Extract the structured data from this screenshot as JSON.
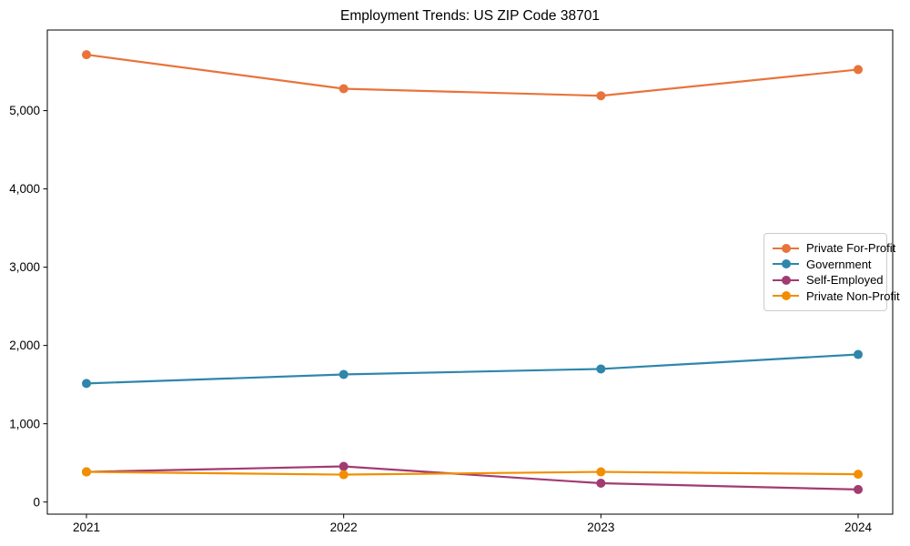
{
  "chart_data": {
    "type": "line",
    "title": "Employment Trends: US ZIP Code 38701",
    "xlabel": "",
    "ylabel": "",
    "categories": [
      "2021",
      "2022",
      "2023",
      "2024"
    ],
    "series": [
      {
        "name": "Private For-Profit",
        "color": "#E8743B",
        "values": [
          5715,
          5280,
          5190,
          5525
        ]
      },
      {
        "name": "Government",
        "color": "#2E86AB",
        "values": [
          1515,
          1630,
          1700,
          1885
        ]
      },
      {
        "name": "Self-Employed",
        "color": "#A23B72",
        "values": [
          385,
          455,
          240,
          160
        ]
      },
      {
        "name": "Private Non-Profit",
        "color": "#F18F01",
        "values": [
          385,
          350,
          385,
          355
        ]
      }
    ],
    "ylim": [
      -155,
      6030
    ],
    "y_ticks": [
      0,
      1000,
      2000,
      3000,
      4000,
      5000
    ],
    "y_tick_labels": [
      "0",
      "1,000",
      "2,000",
      "3,000",
      "4,000",
      "5,000"
    ],
    "grid": false,
    "legend_position": "center right",
    "frame_color": "#000000"
  }
}
